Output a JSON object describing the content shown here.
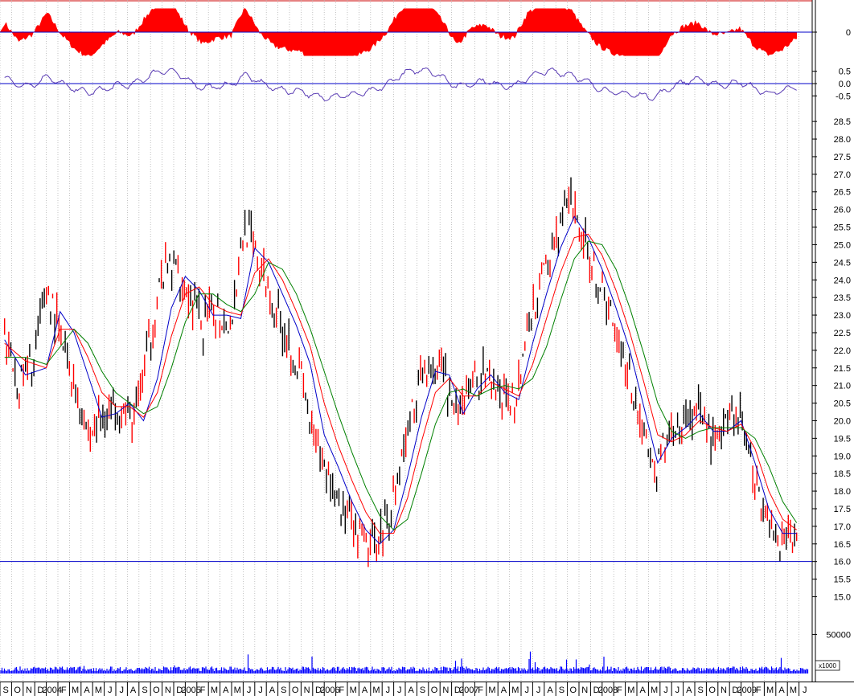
{
  "chart_data": [
    {
      "panel": "oscillator-top",
      "type": "area",
      "y_ticks": [
        {
          "value": 0,
          "label": "0"
        }
      ],
      "ylim": [
        -1.2,
        1.2
      ],
      "baseline": 0,
      "colors": {
        "fill": "#ff0000",
        "zero_line": "#0000c8"
      }
    },
    {
      "panel": "oscillator-middle",
      "type": "line",
      "y_ticks": [
        {
          "value": 0.5,
          "label": "0.5"
        },
        {
          "value": 0.0,
          "label": "0.0"
        },
        {
          "value": -0.5,
          "label": "-0.5"
        }
      ],
      "ylim": [
        -0.85,
        0.85
      ],
      "colors": {
        "line": "#5a3cb4",
        "zero_line": "#0000c8"
      }
    },
    {
      "panel": "price",
      "type": "line",
      "ylim": [
        14.6,
        28.8
      ],
      "y_ticks": [
        {
          "value": 28.5,
          "label": "28.5"
        },
        {
          "value": 28.0,
          "label": "28.0"
        },
        {
          "value": 27.5,
          "label": "27.5"
        },
        {
          "value": 27.0,
          "label": "27.0"
        },
        {
          "value": 26.5,
          "label": "26.5"
        },
        {
          "value": 26.0,
          "label": "26.0"
        },
        {
          "value": 25.5,
          "label": "25.5"
        },
        {
          "value": 25.0,
          "label": "25.0"
        },
        {
          "value": 24.5,
          "label": "24.5"
        },
        {
          "value": 24.0,
          "label": "24.0"
        },
        {
          "value": 23.5,
          "label": "23.5"
        },
        {
          "value": 23.0,
          "label": "23.0"
        },
        {
          "value": 22.5,
          "label": "22.5"
        },
        {
          "value": 22.0,
          "label": "22.0"
        },
        {
          "value": 21.5,
          "label": "21.5"
        },
        {
          "value": 21.0,
          "label": "21.0"
        },
        {
          "value": 20.5,
          "label": "20.5"
        },
        {
          "value": 20.0,
          "label": "20.0"
        },
        {
          "value": 19.5,
          "label": "19.5"
        },
        {
          "value": 19.0,
          "label": "19.0"
        },
        {
          "value": 18.5,
          "label": "18.5"
        },
        {
          "value": 18.0,
          "label": "18.0"
        },
        {
          "value": 17.5,
          "label": "17.5"
        },
        {
          "value": 17.0,
          "label": "17.0"
        },
        {
          "value": 16.5,
          "label": "16.5"
        },
        {
          "value": 16.0,
          "label": "16.0"
        },
        {
          "value": 15.5,
          "label": "15.5"
        },
        {
          "value": 15.0,
          "label": "15.0"
        }
      ],
      "support_line": 16.0,
      "x": [
        2003.7,
        2003.85,
        2004.0,
        2004.1,
        2004.2,
        2004.3,
        2004.4,
        2004.5,
        2004.6,
        2004.7,
        2004.8,
        2004.9,
        2005.0,
        2005.1,
        2005.2,
        2005.3,
        2005.4,
        2005.5,
        2005.6,
        2005.7,
        2005.8,
        2005.9,
        2006.0,
        2006.1,
        2006.2,
        2006.3,
        2006.4,
        2006.5,
        2006.6,
        2006.7,
        2006.8,
        2006.9,
        2007.0,
        2007.1,
        2007.2,
        2007.3,
        2007.4,
        2007.5,
        2007.6,
        2007.7,
        2007.8,
        2007.9,
        2008.0,
        2008.1,
        2008.2,
        2008.3,
        2008.4,
        2008.5,
        2008.6,
        2008.7,
        2008.8,
        2008.9,
        2009.0,
        2009.1,
        2009.2,
        2009.3,
        2009.4
      ],
      "series": [
        {
          "style": "price-bars",
          "color": "#000000",
          "values": [
            22.2,
            21.0,
            21.6,
            23.8,
            22.3,
            20.9,
            19.6,
            20.2,
            20.6,
            19.9,
            21.6,
            23.9,
            24.5,
            23.6,
            22.7,
            23.1,
            22.8,
            25.6,
            24.4,
            23.3,
            22.4,
            21.2,
            19.1,
            18.4,
            17.4,
            16.6,
            16.4,
            17.1,
            18.8,
            20.6,
            21.7,
            21.3,
            19.9,
            21.1,
            21.3,
            20.7,
            20.5,
            22.6,
            24.0,
            25.3,
            26.2,
            25.0,
            24.0,
            22.9,
            21.6,
            19.9,
            18.4,
            19.7,
            19.9,
            20.4,
            19.5,
            19.7,
            20.2,
            18.4,
            17.2,
            16.6,
            16.9
          ]
        },
        {
          "style": "moving-average",
          "color": "#0000c8",
          "values": [
            22.3,
            21.3,
            21.5,
            23.1,
            22.5,
            21.3,
            20.1,
            20.2,
            20.5,
            20.0,
            21.2,
            23.2,
            24.1,
            23.7,
            23.0,
            23.0,
            22.9,
            24.9,
            24.5,
            23.6,
            22.7,
            21.6,
            19.6,
            18.7,
            17.7,
            16.9,
            16.5,
            16.9,
            18.4,
            20.1,
            21.4,
            21.3,
            20.2,
            20.9,
            21.3,
            20.8,
            20.6,
            22.2,
            23.6,
            24.9,
            25.8,
            25.2,
            24.3,
            23.2,
            22.0,
            20.4,
            18.8,
            19.5,
            19.8,
            20.2,
            19.7,
            19.7,
            20.0,
            18.8,
            17.5,
            16.8,
            16.8
          ]
        },
        {
          "style": "moving-average",
          "color": "#ff0000",
          "values": [
            22.2,
            21.7,
            21.5,
            22.6,
            22.6,
            21.8,
            20.8,
            20.4,
            20.4,
            20.1,
            20.8,
            22.4,
            23.6,
            23.8,
            23.3,
            23.1,
            23.0,
            24.2,
            24.6,
            24.0,
            23.1,
            22.1,
            20.5,
            19.3,
            18.3,
            17.4,
            16.8,
            16.8,
            17.8,
            19.4,
            20.8,
            21.2,
            20.7,
            20.7,
            21.1,
            20.9,
            20.7,
            21.6,
            22.9,
            24.2,
            25.2,
            25.3,
            24.7,
            23.7,
            22.5,
            21.1,
            19.6,
            19.4,
            19.6,
            20.0,
            19.8,
            19.7,
            19.9,
            19.2,
            18.0,
            17.2,
            16.9
          ]
        },
        {
          "style": "moving-average",
          "color": "#008000",
          "values": [
            21.8,
            21.8,
            21.6,
            22.1,
            22.6,
            22.2,
            21.4,
            20.8,
            20.5,
            20.2,
            20.4,
            21.5,
            22.8,
            23.6,
            23.6,
            23.3,
            23.1,
            23.6,
            24.5,
            24.3,
            23.6,
            22.6,
            21.4,
            20.2,
            19.1,
            18.1,
            17.3,
            16.9,
            17.2,
            18.5,
            19.9,
            20.8,
            20.9,
            20.7,
            20.9,
            21.0,
            20.9,
            21.2,
            22.1,
            23.4,
            24.6,
            25.1,
            25.0,
            24.3,
            23.2,
            21.9,
            20.5,
            19.7,
            19.5,
            19.7,
            19.8,
            19.8,
            19.8,
            19.5,
            18.7,
            17.7,
            17.1
          ]
        }
      ]
    },
    {
      "panel": "volume",
      "type": "bar",
      "y_ticks": [
        {
          "value": 50000,
          "label": "50000"
        }
      ],
      "ylim": [
        0,
        70000
      ],
      "unit_label": "x1000",
      "colors": {
        "bars": "#0000ff"
      }
    }
  ],
  "x_axis": {
    "labels": [
      "S",
      "O",
      "N",
      "D",
      "2004",
      "F",
      "M",
      "A",
      "M",
      "J",
      "J",
      "A",
      "S",
      "O",
      "N",
      "D",
      "2005",
      "F",
      "M",
      "A",
      "M",
      "J",
      "J",
      "A",
      "S",
      "O",
      "N",
      "D",
      "2006",
      "F",
      "M",
      "A",
      "M",
      "J",
      "J",
      "A",
      "S",
      "O",
      "N",
      "D",
      "2007",
      "F",
      "M",
      "A",
      "M",
      "J",
      "J",
      "A",
      "S",
      "O",
      "N",
      "D",
      "2008",
      "F",
      "M",
      "A",
      "M",
      "J",
      "J",
      "A",
      "S",
      "O",
      "N",
      "D",
      "2009",
      "F",
      "M",
      "A",
      "M",
      "J"
    ],
    "start": 2003.667,
    "step": 0.08333
  }
}
